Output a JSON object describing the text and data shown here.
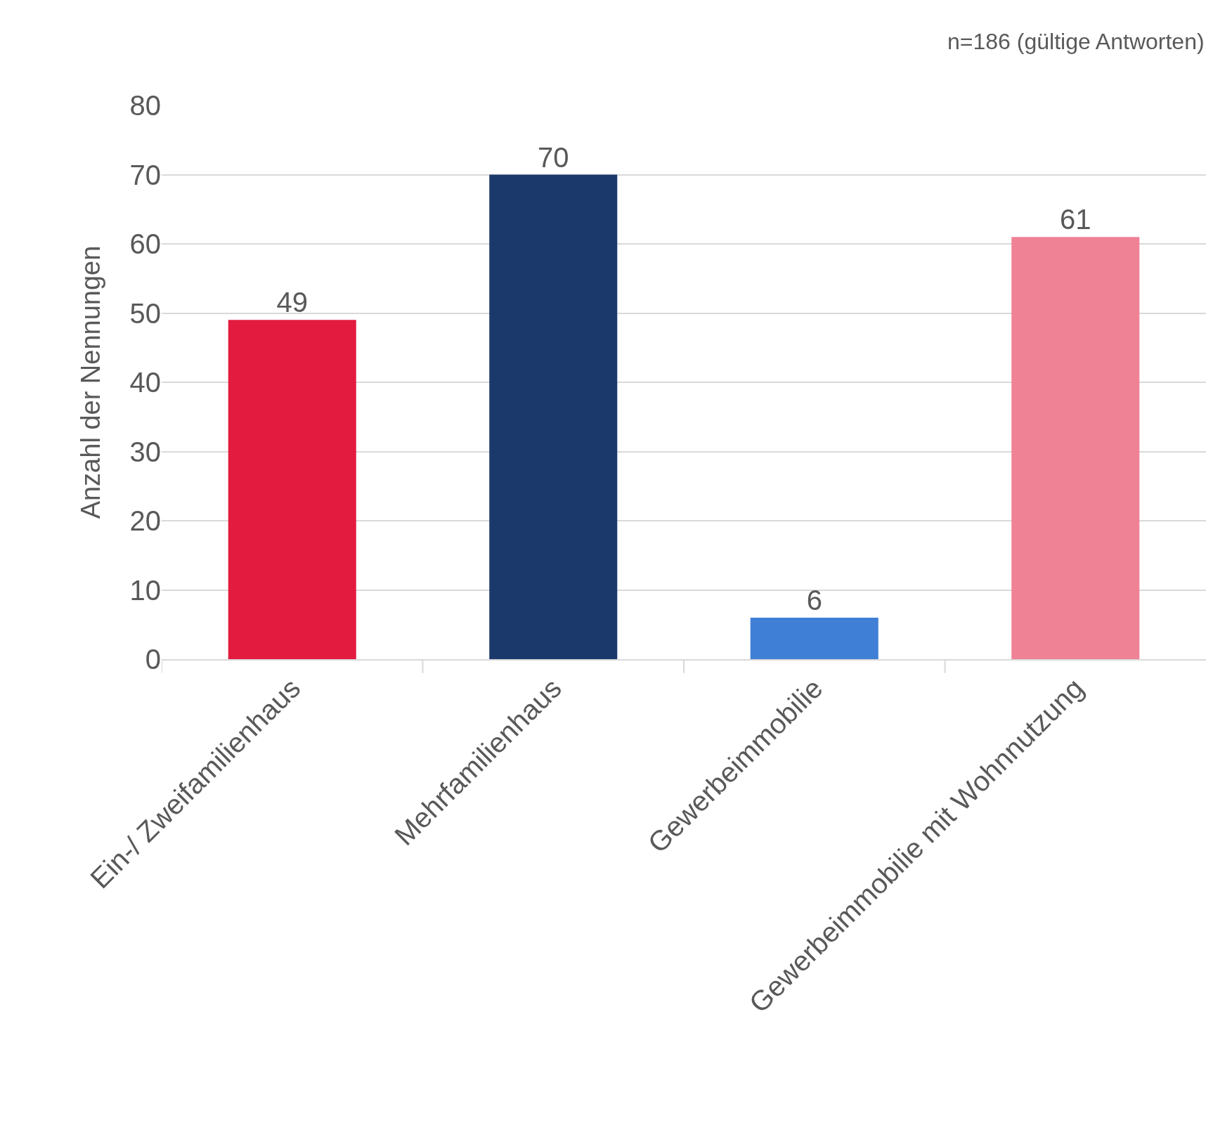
{
  "chart_data": {
    "type": "bar",
    "categories": [
      "Ein-/ Zweifamilienhaus",
      "Mehrfamilienhaus",
      "Gewerbeimmobilie",
      "Gewerbeimmobilie mit Wohnnutzung"
    ],
    "values": [
      49,
      70,
      6,
      61
    ],
    "colors": [
      "#e31b3f",
      "#1b3a6b",
      "#3f7fd6",
      "#ef8294"
    ],
    "ylabel": "Anzahl der Nennungen",
    "ylim": [
      0,
      80
    ],
    "yticks": [
      0,
      10,
      20,
      30,
      40,
      50,
      60,
      70,
      80
    ],
    "grid": "y",
    "data_labels": true,
    "annotations": [
      "n=186 (gültige Antworten)"
    ]
  }
}
